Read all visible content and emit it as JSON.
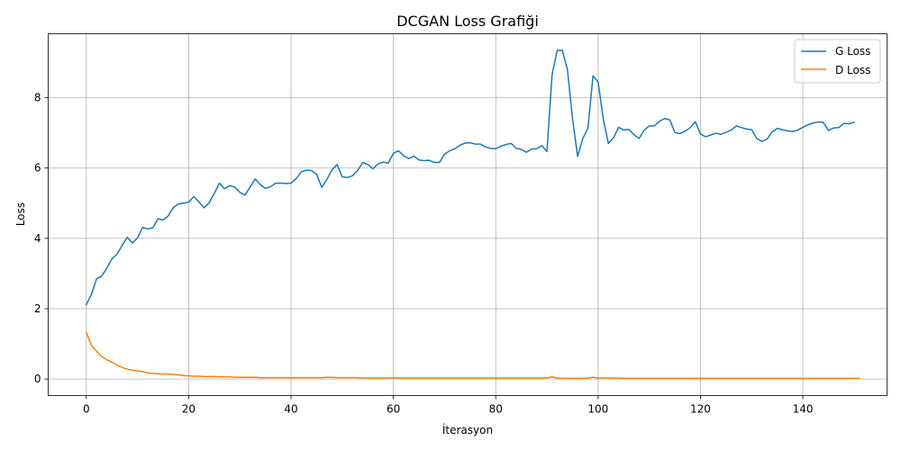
{
  "chart_data": {
    "type": "line",
    "title": "DCGAN Loss Grafiği",
    "xlabel": "İterasyon",
    "ylabel": "Loss",
    "xlim": [
      -7.45,
      156.45
    ],
    "ylim": [
      -0.47,
      9.82
    ],
    "xticks": [
      0,
      20,
      40,
      60,
      80,
      100,
      120,
      140
    ],
    "yticks": [
      0,
      2,
      4,
      6,
      8
    ],
    "grid": true,
    "legend": "top-right",
    "series": [
      {
        "name": "G Loss",
        "color": "#1f77b4",
        "values": [
          2.12,
          2.41,
          2.85,
          2.93,
          3.15,
          3.42,
          3.55,
          3.8,
          4.03,
          3.87,
          4.01,
          4.31,
          4.27,
          4.3,
          4.56,
          4.52,
          4.64,
          4.88,
          4.98,
          5.0,
          5.03,
          5.19,
          5.04,
          4.87,
          5.01,
          5.28,
          5.57,
          5.41,
          5.5,
          5.46,
          5.31,
          5.23,
          5.46,
          5.69,
          5.53,
          5.42,
          5.47,
          5.57,
          5.57,
          5.56,
          5.57,
          5.7,
          5.89,
          5.94,
          5.93,
          5.82,
          5.45,
          5.68,
          5.95,
          6.1,
          5.75,
          5.73,
          5.78,
          5.93,
          6.16,
          6.1,
          5.98,
          6.12,
          6.17,
          6.14,
          6.42,
          6.49,
          6.35,
          6.27,
          6.34,
          6.23,
          6.21,
          6.22,
          6.16,
          6.16,
          6.4,
          6.49,
          6.55,
          6.65,
          6.71,
          6.72,
          6.68,
          6.68,
          6.6,
          6.56,
          6.55,
          6.62,
          6.67,
          6.7,
          6.56,
          6.53,
          6.45,
          6.54,
          6.55,
          6.64,
          6.47,
          8.65,
          9.35,
          9.35,
          8.8,
          7.4,
          6.33,
          6.84,
          7.13,
          8.62,
          8.45,
          7.4,
          6.7,
          6.86,
          7.16,
          7.08,
          7.1,
          6.95,
          6.84,
          7.08,
          7.2,
          7.2,
          7.33,
          7.41,
          7.37,
          7.01,
          6.98,
          7.05,
          7.15,
          7.32,
          6.97,
          6.89,
          6.94,
          6.99,
          6.96,
          7.02,
          7.08,
          7.2,
          7.15,
          7.11,
          7.09,
          6.84,
          6.76,
          6.82,
          7.03,
          7.13,
          7.09,
          7.06,
          7.04,
          7.08,
          7.16,
          7.23,
          7.28,
          7.31,
          7.3,
          7.07,
          7.14,
          7.15,
          7.27,
          7.26,
          7.3
        ]
      },
      {
        "name": "D Loss",
        "color": "#ff7f0e",
        "values": [
          1.32,
          0.95,
          0.79,
          0.64,
          0.55,
          0.48,
          0.4,
          0.33,
          0.28,
          0.25,
          0.23,
          0.21,
          0.17,
          0.16,
          0.15,
          0.14,
          0.14,
          0.13,
          0.12,
          0.1,
          0.09,
          0.08,
          0.08,
          0.07,
          0.07,
          0.07,
          0.06,
          0.06,
          0.06,
          0.05,
          0.05,
          0.05,
          0.05,
          0.05,
          0.04,
          0.04,
          0.04,
          0.04,
          0.04,
          0.04,
          0.04,
          0.04,
          0.04,
          0.04,
          0.04,
          0.04,
          0.04,
          0.05,
          0.05,
          0.04,
          0.04,
          0.04,
          0.04,
          0.04,
          0.03,
          0.03,
          0.03,
          0.03,
          0.03,
          0.03,
          0.04,
          0.03,
          0.03,
          0.03,
          0.03,
          0.03,
          0.03,
          0.03,
          0.03,
          0.03,
          0.03,
          0.03,
          0.03,
          0.03,
          0.03,
          0.03,
          0.03,
          0.03,
          0.03,
          0.03,
          0.03,
          0.03,
          0.03,
          0.03,
          0.03,
          0.03,
          0.03,
          0.03,
          0.03,
          0.03,
          0.03,
          0.06,
          0.03,
          0.02,
          0.02,
          0.02,
          0.02,
          0.02,
          0.03,
          0.05,
          0.03,
          0.03,
          0.03,
          0.03,
          0.03,
          0.02,
          0.02,
          0.02,
          0.02,
          0.02,
          0.02,
          0.02,
          0.02,
          0.02,
          0.02,
          0.02,
          0.02,
          0.02,
          0.02,
          0.02,
          0.02,
          0.02,
          0.02,
          0.02,
          0.02,
          0.02,
          0.02,
          0.02,
          0.02,
          0.02,
          0.02,
          0.02,
          0.02,
          0.02,
          0.02,
          0.02,
          0.02,
          0.02,
          0.02,
          0.02,
          0.02,
          0.02,
          0.02,
          0.02,
          0.02,
          0.02,
          0.02,
          0.02,
          0.02,
          0.02,
          0.02,
          0.02
        ]
      }
    ]
  }
}
